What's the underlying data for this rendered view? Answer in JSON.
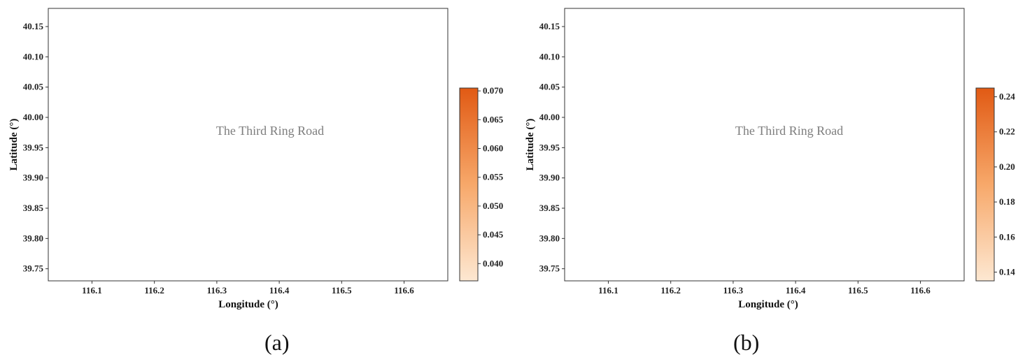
{
  "figure": {
    "panels": [
      {
        "caption": "(a)",
        "xlabel": "Longitude (°)",
        "ylabel": "Latitude (°)",
        "annotation": "The Third Ring Road",
        "colorbar": {
          "min": 0.037,
          "max": 0.0705,
          "ticks": [
            "0.040",
            "0.045",
            "0.050",
            "0.055",
            "0.060",
            "0.065",
            "0.070"
          ],
          "tick_values": [
            0.04,
            0.045,
            0.05,
            0.055,
            0.06,
            0.065,
            0.07
          ]
        }
      },
      {
        "caption": "(b)",
        "xlabel": "Longitude (°)",
        "ylabel": "Latitude (°)",
        "annotation": "The Third Ring Road",
        "colorbar": {
          "min": 0.135,
          "max": 0.245,
          "ticks": [
            "0.14",
            "0.16",
            "0.18",
            "0.20",
            "0.22",
            "0.24"
          ],
          "tick_values": [
            0.14,
            0.16,
            0.18,
            0.2,
            0.22,
            0.24
          ]
        }
      }
    ],
    "x_ticks": [
      "116.1",
      "116.2",
      "116.3",
      "116.4",
      "116.5",
      "116.6"
    ],
    "x_tick_values": [
      116.1,
      116.2,
      116.3,
      116.4,
      116.5,
      116.6
    ],
    "y_ticks": [
      "40.15",
      "40.10",
      "40.05",
      "40.00",
      "39.95",
      "39.90",
      "39.85",
      "39.80",
      "39.75"
    ],
    "y_tick_values": [
      40.15,
      40.1,
      40.05,
      40.0,
      39.95,
      39.9,
      39.85,
      39.8,
      39.75
    ],
    "xlim": [
      116.03,
      116.67
    ],
    "ylim": [
      39.73,
      40.18
    ],
    "colormap": [
      "#fde8d2",
      "#f7a86a",
      "#e15a14"
    ]
  }
}
